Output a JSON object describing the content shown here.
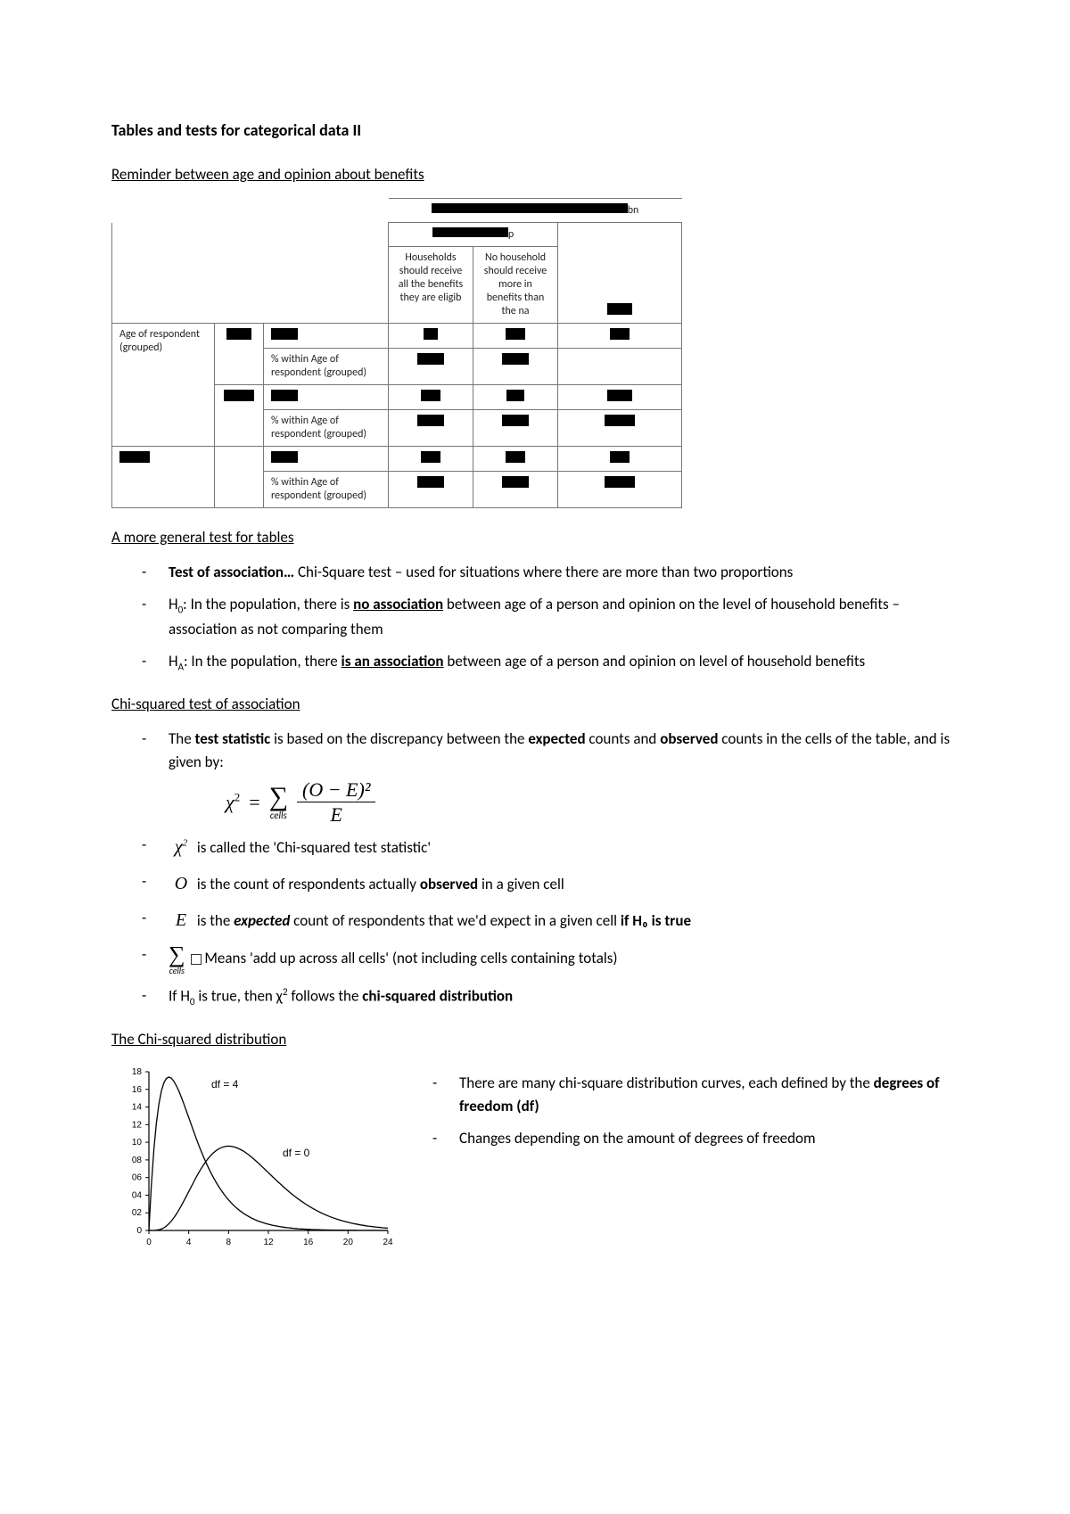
{
  "title": "Tables and tests for categorical data II",
  "reminder_heading": "Reminder between age and opinion about benefits",
  "xtab": {
    "top_bar_width": 220,
    "top_bar_tail": "bn",
    "grouphead_bar_width": 85,
    "grouphead_tail": "p",
    "col1": "Households should receive all the benefits they are eligib",
    "col2": "No household should receive more in benefits than the na",
    "rowlabel1": "Age of respondent (grouped)",
    "rowlabel_pct": "% within Age of respondent (grouped)",
    "total_bar_width": 34
  },
  "general_heading": "A more general test for tables",
  "general_bullets": {
    "b1_a": "Test of association…",
    "b1_b": " Chi-Square test – used for situations where there are more than two proportions",
    "b2_a": "H",
    "b2_b": ": In the population, there is ",
    "b2_c": "no association",
    "b2_d": " between age of a person and opinion on the level of household benefits – association as not comparing them",
    "b3_a": "H",
    "b3_b": ": In the population, there ",
    "b3_c": "is an association",
    "b3_d": " between age of a person and opinion on level of household benefits"
  },
  "chisq_heading": "Chi-squared test of association",
  "chisq_bullets": {
    "intro_a": "The ",
    "intro_b": "test statistic",
    "intro_c": " is based on the discrepancy between the ",
    "intro_d": "expected",
    "intro_e": " counts and ",
    "intro_f": "observed",
    "intro_g": " counts in the cells of the table, and is given by:",
    "formula_lhs": "χ",
    "formula_eq": "=",
    "formula_sum_lbl": "cells",
    "formula_num": "(O − E)²",
    "formula_den": "E",
    "def_chi": "  is called the 'Chi-squared test statistic'",
    "def_O": "  is the count of respondents actually ",
    "def_O_b": "observed",
    "def_O_c": " in a given cell",
    "def_E_a": "  is the ",
    "def_E_b": "expected",
    "def_E_c": " count of respondents that we'd expect in a given cell ",
    "def_E_d": "if H₀ is true",
    "def_sum": "  Means 'add up across all cells' (not including cells containing totals)",
    "last_a": "If H",
    "last_b": " is true, then χ",
    "last_c": " follows the ",
    "last_d": "chi-squared distribution"
  },
  "dist_heading": "The Chi-squared distribution",
  "dist_notes": {
    "n1_a": "There are many chi-square distribution curves, each defined by the ",
    "n1_b": "degrees of freedom (df)",
    "n2": "Changes depending on the amount of degrees of freedom"
  },
  "chart": {
    "y_ticks": [
      "18",
      "16",
      "14",
      "12",
      "10",
      "08",
      "06",
      "04",
      "02",
      "0"
    ],
    "x_ticks": [
      "0",
      "4",
      "8",
      "12",
      "16",
      "20",
      "24"
    ],
    "label_df4": "df = 4",
    "label_df10": "df =  0",
    "axis_color": "#000000",
    "curve_color": "#000000",
    "background": "#ffffff",
    "y_tick_fontsize": 10,
    "x_tick_fontsize": 10,
    "label_fontsize": 12
  }
}
